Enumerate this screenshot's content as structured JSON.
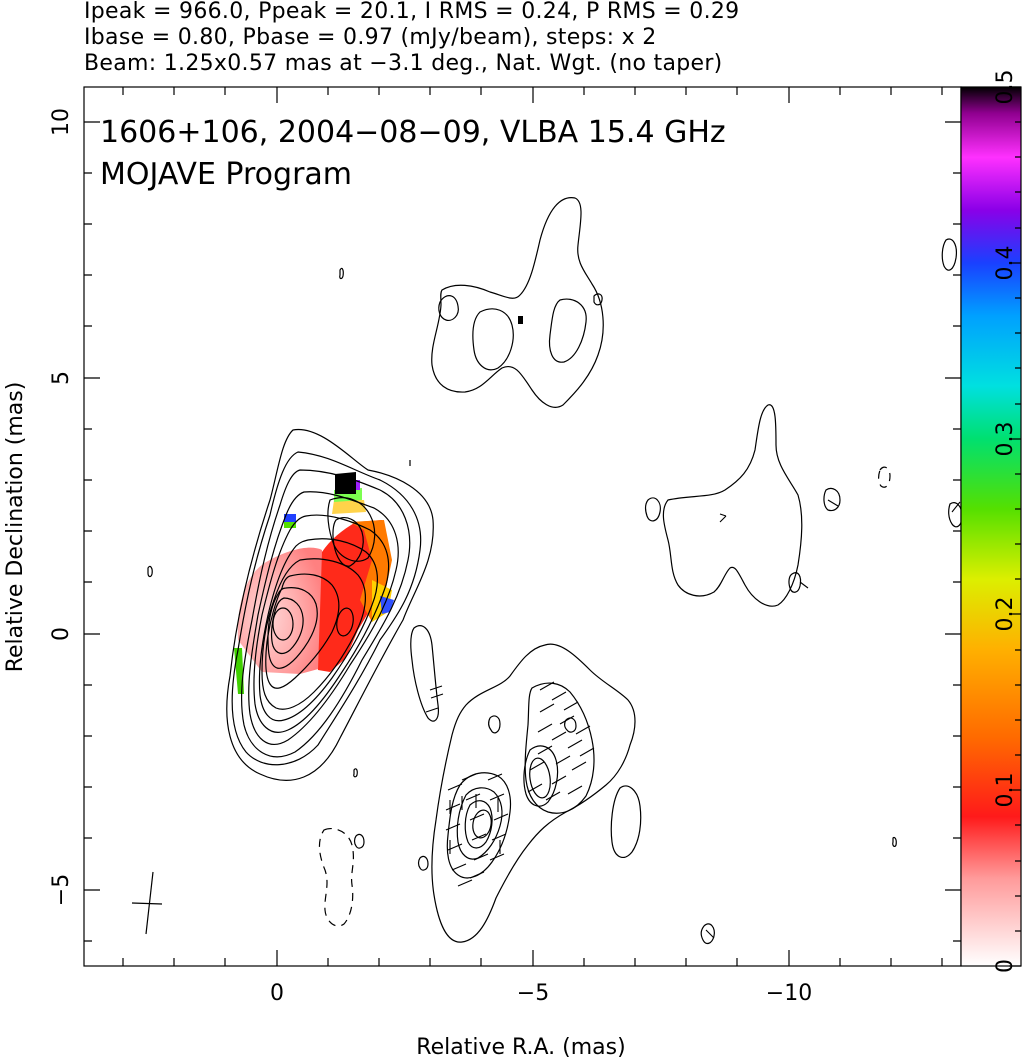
{
  "header": {
    "line1": "Ipeak = 966.0, Ppeak = 20.1, I RMS = 0.24, P RMS = 0.29",
    "line2": "Ibase = 0.80, Pbase = 0.97 (mJy/beam), steps: x 2",
    "line3": "Beam: 1.25x0.57 mas at −3.1 deg., Nat. Wgt. (no taper)"
  },
  "chart_data": {
    "type": "heatmap",
    "title": "1606+106, 2004−08−09, VLBA 15.4 GHz",
    "subtitle": "MOJAVE Program",
    "xlabel": "Relative R.A. (mas)",
    "ylabel": "Relative Declination (mas)",
    "xlim": [
      3.8,
      -13.4
    ],
    "ylim": [
      -6.4,
      10.7
    ],
    "x_ticks": [
      0,
      -5,
      -10
    ],
    "x_tick_labels": [
      "0",
      "−5",
      "−10"
    ],
    "y_ticks": [
      10,
      5,
      0,
      -5
    ],
    "y_tick_labels": [
      "10",
      "5",
      "0",
      "−5"
    ],
    "colorbar": {
      "range": [
        0,
        0.5
      ],
      "ticks": [
        0,
        0.1,
        0.2,
        0.3,
        0.4,
        0.5
      ],
      "tick_labels": [
        "0",
        "0.1",
        "0.2",
        "0.3",
        "0.4",
        "0.5"
      ]
    },
    "core_peak": {
      "ra": 0,
      "dec": 0
    },
    "beam": {
      "major": 1.25,
      "minor": 0.57,
      "pa": -3.1
    }
  }
}
